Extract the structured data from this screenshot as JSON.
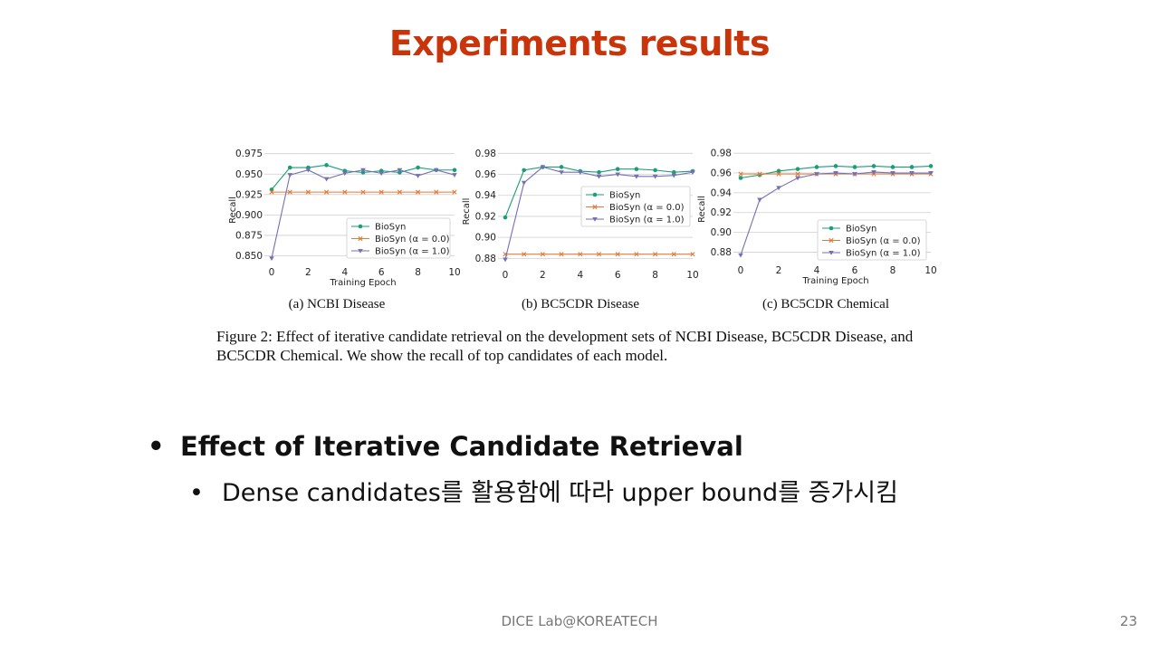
{
  "slide": {
    "title": "Experiments results",
    "caption_line1": "Figure 2: Effect of iterative candidate retrieval on the development sets of NCBI Disease, BC5CDR Disease, and",
    "caption_line2": "BC5CDR Chemical. We show the recall of top candidates of each model.",
    "bullet1": "Effect of Iterative Candidate Retrieval",
    "bullet2": "Dense candidates를 활용함에 따라 upper bound를 증가시킴",
    "bullet_mark": "•",
    "footer": "DICE Lab@KOREATECH",
    "page_number": "23"
  },
  "colors": {
    "title": "#c9340a",
    "biosyn": "#1b9e77",
    "alpha0": "#e07b39",
    "alpha1": "#7570b3",
    "grid": "#cfcfcf"
  },
  "chart_data": [
    {
      "type": "line",
      "caption": "(a) NCBI Disease",
      "xlabel": "Training Epoch",
      "ylabel": "Recall",
      "xlim": [
        0,
        10
      ],
      "ylim": [
        0.845,
        0.978
      ],
      "xticks": [
        "0",
        "2",
        "4",
        "6",
        "8",
        "10"
      ],
      "yticks": [
        "0.850",
        "0.875",
        "0.900",
        "0.925",
        "0.950",
        "0.975"
      ],
      "legend_position": "lower-right",
      "x": [
        0,
        1,
        2,
        3,
        4,
        5,
        6,
        7,
        8,
        9,
        10
      ],
      "series": [
        {
          "name": "BioSyn",
          "marker": "circle",
          "values": [
            0.931,
            0.958,
            0.958,
            0.961,
            0.954,
            0.952,
            0.954,
            0.952,
            0.958,
            0.955,
            0.955
          ]
        },
        {
          "name": "BioSyn (α = 0.0)",
          "marker": "x",
          "values": [
            0.928,
            0.928,
            0.928,
            0.928,
            0.928,
            0.928,
            0.928,
            0.928,
            0.928,
            0.928,
            0.928
          ]
        },
        {
          "name": "BioSyn (α = 1.0)",
          "marker": "triangle",
          "values": [
            0.847,
            0.949,
            0.955,
            0.944,
            0.951,
            0.955,
            0.951,
            0.955,
            0.948,
            0.955,
            0.949
          ]
        }
      ]
    },
    {
      "type": "line",
      "caption": "(b) BC5CDR Disease",
      "xlabel": "",
      "ylabel": "Recall",
      "xlim": [
        0,
        10
      ],
      "ylim": [
        0.876,
        0.982
      ],
      "xticks": [
        "0",
        "2",
        "4",
        "6",
        "8",
        "10"
      ],
      "yticks": [
        "0.88",
        "0.90",
        "0.92",
        "0.94",
        "0.96",
        "0.98"
      ],
      "legend_position": "center-right",
      "x": [
        0,
        1,
        2,
        3,
        4,
        5,
        6,
        7,
        8,
        9,
        10
      ],
      "series": [
        {
          "name": "BioSyn",
          "marker": "circle",
          "values": [
            0.919,
            0.964,
            0.967,
            0.967,
            0.963,
            0.962,
            0.965,
            0.965,
            0.964,
            0.962,
            0.963
          ]
        },
        {
          "name": "BioSyn (α = 0.0)",
          "marker": "x",
          "values": [
            0.884,
            0.884,
            0.884,
            0.884,
            0.884,
            0.884,
            0.884,
            0.884,
            0.884,
            0.884,
            0.884
          ]
        },
        {
          "name": "BioSyn (α = 1.0)",
          "marker": "triangle",
          "values": [
            0.879,
            0.952,
            0.967,
            0.962,
            0.962,
            0.958,
            0.96,
            0.958,
            0.958,
            0.959,
            0.962
          ]
        }
      ]
    },
    {
      "type": "line",
      "caption": "(c) BC5CDR Chemical",
      "xlabel": "Training Epoch",
      "ylabel": "Recall",
      "xlim": [
        0,
        10
      ],
      "ylim": [
        0.874,
        0.982
      ],
      "xticks": [
        "0",
        "2",
        "4",
        "6",
        "8",
        "10"
      ],
      "yticks": [
        "0.88",
        "0.90",
        "0.92",
        "0.94",
        "0.96",
        "0.98"
      ],
      "legend_position": "lower-right",
      "x": [
        0,
        1,
        2,
        3,
        4,
        5,
        6,
        7,
        8,
        9,
        10
      ],
      "series": [
        {
          "name": "BioSyn",
          "marker": "circle",
          "values": [
            0.955,
            0.958,
            0.962,
            0.964,
            0.966,
            0.967,
            0.966,
            0.967,
            0.966,
            0.966,
            0.967
          ]
        },
        {
          "name": "BioSyn (α = 0.0)",
          "marker": "x",
          "values": [
            0.959,
            0.959,
            0.959,
            0.959,
            0.959,
            0.959,
            0.959,
            0.959,
            0.959,
            0.959,
            0.959
          ]
        },
        {
          "name": "BioSyn (α = 1.0)",
          "marker": "triangle",
          "values": [
            0.877,
            0.933,
            0.945,
            0.955,
            0.959,
            0.96,
            0.959,
            0.961,
            0.96,
            0.96,
            0.96
          ]
        }
      ]
    }
  ]
}
